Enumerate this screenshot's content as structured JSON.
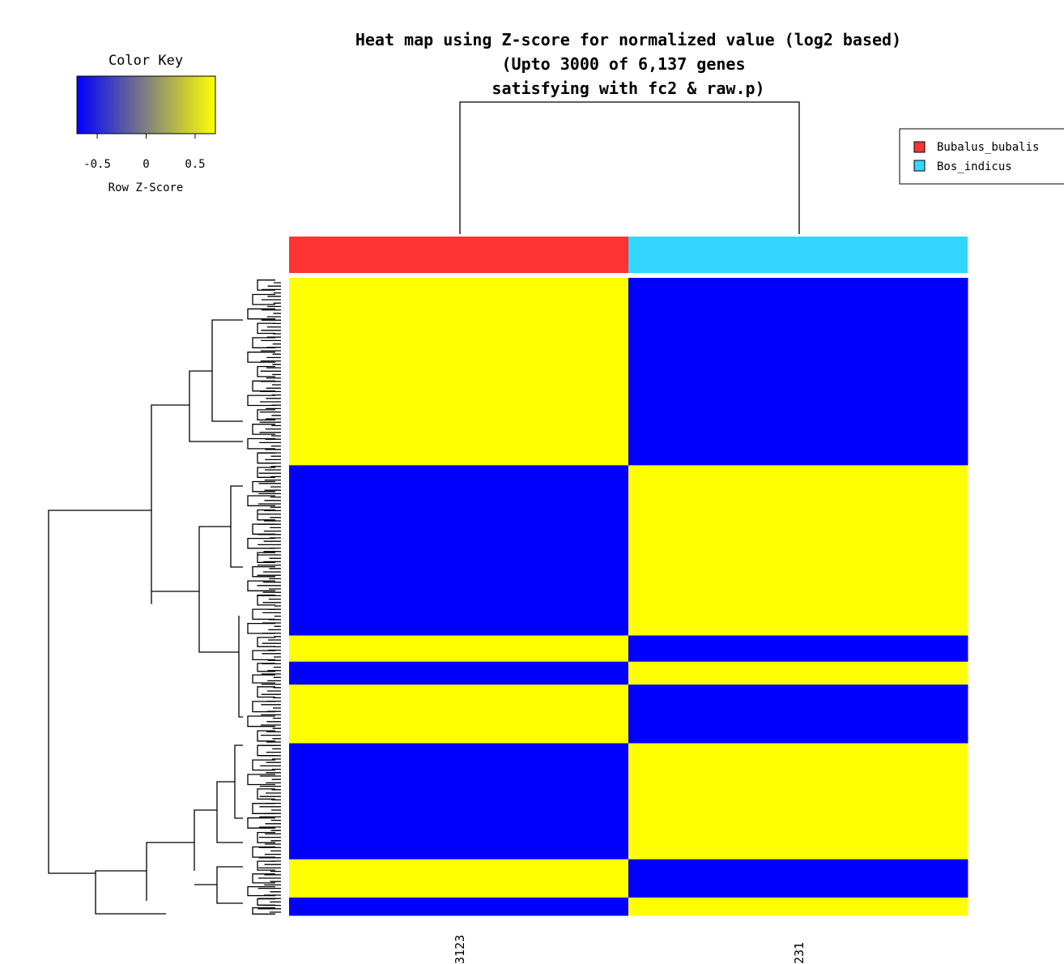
{
  "chart_data": {
    "type": "heatmap",
    "title_lines": [
      "Heat map using Z-score for normalized value (log2 based)",
      "(Upto 3000 of 6,137 genes",
      "satisfying with fc2 & raw.p)"
    ],
    "columns": [
      "3123",
      "231"
    ],
    "column_groups": [
      "Bubalus_bubalis",
      "Bos_indicus"
    ],
    "legend": {
      "placement": "top-right",
      "entries": [
        {
          "label": "Bubalus_bubalis",
          "color": "#ff3333"
        },
        {
          "label": "Bos_indicus",
          "color": "#33d6ff"
        }
      ]
    },
    "color_key": {
      "title": "Color Key",
      "xlabel": "Row Z-Score",
      "ticks": [
        "-0.5",
        "0",
        "0.5"
      ],
      "tick_values": [
        -0.5,
        0,
        0.5
      ],
      "range": [
        -0.707,
        0.707
      ],
      "low_color": "#0000ff",
      "mid_color": "#808080",
      "high_color": "#ffff00"
    },
    "row_blocks": [
      {
        "fraction": 0.294,
        "values": [
          0.707,
          -0.707
        ]
      },
      {
        "fraction": 0.267,
        "values": [
          -0.707,
          0.707
        ]
      },
      {
        "fraction": 0.041,
        "values": [
          0.707,
          -0.707
        ]
      },
      {
        "fraction": 0.036,
        "values": [
          -0.707,
          0.707
        ]
      },
      {
        "fraction": 0.092,
        "values": [
          0.707,
          -0.707
        ]
      },
      {
        "fraction": 0.182,
        "values": [
          -0.707,
          0.707
        ]
      },
      {
        "fraction": 0.06,
        "values": [
          0.707,
          -0.707
        ]
      },
      {
        "fraction": 0.028,
        "values": [
          -0.707,
          0.707
        ]
      }
    ],
    "row_dendrogram": true,
    "column_dendrogram": true
  }
}
